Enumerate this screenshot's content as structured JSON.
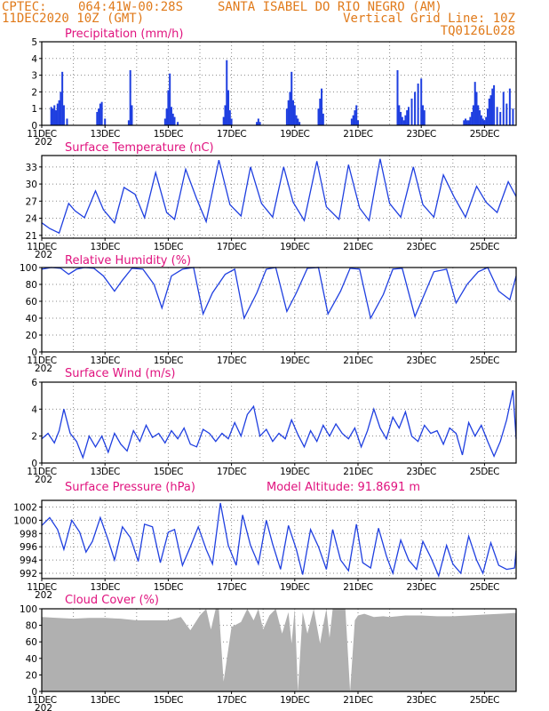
{
  "header": {
    "line1_left": "CPTEC:",
    "line1_coords": "064:41W-00:28S",
    "line1_place": "SANTA ISABEL DO RIO NEGRO (AM)",
    "line2_date": "11DEC2020 10Z (GMT)",
    "line2_grid": "Vertical Grid Line: 10Z",
    "line3_code": "TQ0126L028"
  },
  "colors": {
    "header": "#e07a1a",
    "title": "#e0127e",
    "series": "#1f3fe0",
    "bars": "#1f3fe0",
    "cloud": "#b0b0b0",
    "grid": "#888888"
  },
  "x_axis": {
    "start": "11DEC",
    "end": "26DEC",
    "tick_labels": [
      "11DEC",
      "13DEC",
      "15DEC",
      "17DEC",
      "19DEC",
      "21DEC",
      "23DEC",
      "25DEC"
    ],
    "tick_days": [
      11,
      13,
      15,
      17,
      19,
      21,
      23,
      25
    ],
    "grid_every_days": 1,
    "first_label_subscript": "202"
  },
  "chart_data": [
    {
      "id": "precip",
      "type": "bar",
      "title": "Precipitation (mm/h)",
      "ylim": [
        0,
        5
      ],
      "yticks": [
        0,
        1,
        2,
        3,
        4,
        5
      ],
      "x": [
        11.3,
        11.35,
        11.4,
        11.45,
        11.5,
        11.55,
        11.6,
        11.65,
        11.7,
        11.8,
        12.75,
        12.8,
        12.85,
        12.9,
        13.0,
        13.75,
        13.8,
        13.85,
        14.9,
        14.95,
        15.0,
        15.05,
        15.1,
        15.15,
        15.2,
        15.3,
        16.75,
        16.8,
        16.85,
        16.9,
        16.95,
        17.0,
        17.8,
        17.85,
        17.9,
        18.75,
        18.8,
        18.85,
        18.9,
        18.95,
        19.0,
        19.05,
        19.1,
        19.15,
        19.75,
        19.8,
        19.85,
        19.9,
        20.8,
        20.85,
        20.9,
        20.95,
        21.0,
        22.25,
        22.3,
        22.35,
        22.4,
        22.45,
        22.5,
        22.55,
        22.6,
        22.7,
        22.8,
        22.9,
        23.0,
        23.05,
        23.1,
        24.35,
        24.4,
        24.45,
        24.5,
        24.55,
        24.6,
        24.65,
        24.7,
        24.75,
        24.8,
        24.85,
        24.9,
        24.95,
        25.0,
        25.05,
        25.1,
        25.15,
        25.2,
        25.25,
        25.3,
        25.4,
        25.5,
        25.6,
        25.7,
        25.8,
        25.9
      ],
      "values": [
        1.1,
        1.0,
        1.2,
        0.9,
        1.3,
        1.5,
        2.0,
        3.2,
        1.2,
        0.4,
        0.8,
        1.0,
        1.3,
        1.4,
        0.4,
        0.3,
        3.3,
        1.2,
        0.4,
        1.0,
        2.1,
        3.1,
        1.1,
        0.7,
        0.5,
        0.2,
        0.5,
        1.2,
        3.9,
        2.1,
        0.9,
        0.4,
        0.2,
        0.4,
        0.2,
        1.0,
        1.5,
        2.0,
        3.2,
        1.5,
        1.2,
        0.6,
        0.4,
        0.2,
        1.0,
        1.6,
        2.2,
        0.7,
        0.4,
        0.6,
        0.9,
        1.2,
        0.3,
        3.3,
        1.2,
        0.8,
        0.5,
        0.3,
        0.6,
        0.9,
        1.1,
        1.6,
        2.0,
        2.5,
        2.8,
        1.2,
        0.9,
        0.3,
        0.4,
        0.3,
        0.3,
        0.5,
        0.8,
        1.2,
        2.6,
        2.0,
        1.2,
        0.9,
        0.6,
        0.4,
        0.3,
        0.5,
        1.0,
        1.6,
        1.8,
        2.2,
        2.4,
        1.1,
        0.8,
        2.0,
        1.3,
        2.2,
        1.0
      ]
    },
    {
      "id": "temp",
      "type": "line",
      "title": "Surface Temperature (nC)",
      "ylim": [
        20.5,
        35
      ],
      "yticks": [
        21,
        24,
        27,
        30,
        33
      ],
      "x": [
        11.0,
        11.25,
        11.55,
        11.85,
        12.05,
        12.35,
        12.7,
        12.95,
        13.3,
        13.6,
        13.95,
        14.25,
        14.6,
        14.95,
        15.2,
        15.55,
        15.9,
        16.2,
        16.6,
        16.95,
        17.3,
        17.6,
        17.95,
        18.3,
        18.65,
        18.95,
        19.3,
        19.7,
        20.0,
        20.4,
        20.7,
        21.05,
        21.35,
        21.7,
        22.0,
        22.35,
        22.75,
        23.05,
        23.4,
        23.7,
        24.05,
        24.4,
        24.75,
        25.05,
        25.4,
        25.75,
        26.0
      ],
      "values": [
        23.2,
        22.2,
        21.4,
        26.6,
        25.3,
        24.1,
        28.8,
        25.5,
        23.2,
        29.4,
        28.2,
        24.1,
        32.0,
        25.0,
        23.8,
        32.6,
        27.4,
        23.4,
        34.2,
        26.4,
        24.4,
        33.0,
        26.6,
        24.2,
        33.0,
        26.8,
        23.6,
        34.0,
        26.0,
        23.8,
        33.4,
        25.8,
        23.6,
        34.4,
        26.6,
        24.2,
        33.0,
        26.4,
        24.2,
        31.6,
        27.6,
        24.2,
        29.6,
        26.8,
        25.0,
        30.4,
        27.8
      ]
    },
    {
      "id": "rh",
      "type": "line",
      "title": "Relative Humidity (%)",
      "ylim": [
        0,
        100
      ],
      "yticks": [
        0,
        20,
        40,
        60,
        80,
        100
      ],
      "x": [
        11.0,
        11.3,
        11.6,
        11.85,
        12.1,
        12.35,
        12.65,
        12.95,
        13.3,
        13.55,
        13.85,
        14.2,
        14.55,
        14.8,
        15.1,
        15.45,
        15.8,
        16.1,
        16.4,
        16.8,
        17.1,
        17.4,
        17.8,
        18.1,
        18.4,
        18.75,
        19.05,
        19.4,
        19.75,
        20.05,
        20.45,
        20.75,
        21.05,
        21.4,
        21.8,
        22.1,
        22.4,
        22.8,
        23.05,
        23.4,
        23.8,
        24.1,
        24.45,
        24.8,
        25.1,
        25.45,
        25.8,
        26.0
      ],
      "values": [
        98,
        100,
        99,
        92,
        98,
        100,
        99,
        90,
        72,
        85,
        99,
        98,
        80,
        52,
        90,
        98,
        100,
        45,
        70,
        92,
        98,
        40,
        70,
        98,
        100,
        48,
        70,
        99,
        100,
        45,
        72,
        99,
        98,
        40,
        68,
        98,
        99,
        42,
        64,
        95,
        98,
        58,
        80,
        95,
        100,
        72,
        62,
        90
      ]
    },
    {
      "id": "wind",
      "type": "line",
      "title": "Surface Wind (m/s)",
      "ylim": [
        0,
        6
      ],
      "yticks": [
        0,
        2,
        4,
        6
      ],
      "x": [
        11.0,
        11.2,
        11.4,
        11.55,
        11.7,
        11.9,
        12.1,
        12.3,
        12.5,
        12.7,
        12.9,
        13.1,
        13.3,
        13.5,
        13.7,
        13.9,
        14.1,
        14.3,
        14.5,
        14.7,
        14.9,
        15.1,
        15.3,
        15.5,
        15.7,
        15.9,
        16.1,
        16.3,
        16.5,
        16.7,
        16.9,
        17.1,
        17.3,
        17.5,
        17.7,
        17.9,
        18.1,
        18.3,
        18.5,
        18.7,
        18.9,
        19.1,
        19.3,
        19.5,
        19.7,
        19.9,
        20.1,
        20.3,
        20.5,
        20.7,
        20.9,
        21.1,
        21.3,
        21.5,
        21.7,
        21.9,
        22.1,
        22.3,
        22.5,
        22.7,
        22.9,
        23.1,
        23.3,
        23.5,
        23.7,
        23.9,
        24.1,
        24.3,
        24.5,
        24.7,
        24.9,
        25.1,
        25.3,
        25.5,
        25.7,
        25.9,
        26.0
      ],
      "values": [
        1.8,
        2.2,
        1.5,
        2.4,
        4.0,
        2.2,
        1.6,
        0.4,
        2.0,
        1.2,
        2.0,
        0.8,
        2.2,
        1.4,
        0.9,
        2.4,
        1.6,
        2.8,
        1.9,
        2.2,
        1.5,
        2.4,
        1.8,
        2.6,
        1.4,
        1.2,
        2.5,
        2.2,
        1.6,
        2.2,
        1.8,
        3.0,
        2.0,
        3.6,
        4.2,
        2.0,
        2.5,
        1.6,
        2.2,
        1.8,
        3.2,
        2.1,
        1.2,
        2.4,
        1.6,
        2.8,
        2.0,
        2.9,
        2.2,
        1.8,
        2.6,
        1.2,
        2.4,
        4.0,
        2.6,
        1.8,
        3.4,
        2.6,
        3.8,
        2.0,
        1.6,
        2.8,
        2.2,
        2.4,
        1.4,
        2.6,
        2.2,
        0.6,
        3.0,
        2.0,
        2.8,
        1.6,
        0.5,
        1.6,
        3.2,
        5.4,
        1.8
      ]
    },
    {
      "id": "pres",
      "type": "line",
      "title": "Surface Pressure (hPa)",
      "annotation": "Model Altitude: 91.8691 m",
      "ylim": [
        991.2,
        1003
      ],
      "yticks": [
        992,
        994,
        996,
        998,
        1000,
        1002
      ],
      "x": [
        11.0,
        11.25,
        11.5,
        11.7,
        11.95,
        12.2,
        12.4,
        12.6,
        12.85,
        13.1,
        13.3,
        13.55,
        13.8,
        14.05,
        14.25,
        14.5,
        14.75,
        15.0,
        15.2,
        15.45,
        15.7,
        15.95,
        16.2,
        16.4,
        16.65,
        16.9,
        17.15,
        17.35,
        17.6,
        17.85,
        18.1,
        18.3,
        18.55,
        18.8,
        19.05,
        19.25,
        19.5,
        19.75,
        20.0,
        20.2,
        20.45,
        20.7,
        20.95,
        21.15,
        21.4,
        21.65,
        21.9,
        22.1,
        22.35,
        22.6,
        22.85,
        23.05,
        23.3,
        23.55,
        23.8,
        24.0,
        24.25,
        24.5,
        24.75,
        24.95,
        25.2,
        25.45,
        25.7,
        25.95,
        26.0
      ],
      "values": [
        999.2,
        1000.4,
        998.6,
        995.6,
        1000.0,
        998.2,
        995.2,
        996.8,
        1000.4,
        997.0,
        994.0,
        999.0,
        997.4,
        993.8,
        999.4,
        999.0,
        993.6,
        998.2,
        998.6,
        993.2,
        996.0,
        999.0,
        995.6,
        993.4,
        1002.6,
        996.2,
        993.2,
        1000.8,
        996.2,
        993.4,
        1000.0,
        996.4,
        992.6,
        999.2,
        995.6,
        991.8,
        998.6,
        996.0,
        992.6,
        998.6,
        994.0,
        992.4,
        999.4,
        993.6,
        992.8,
        998.8,
        994.6,
        992.0,
        997.0,
        994.0,
        992.6,
        996.8,
        994.4,
        991.6,
        996.2,
        993.4,
        992.0,
        997.6,
        994.0,
        992.0,
        996.6,
        993.2,
        992.6,
        992.8,
        995.4
      ]
    },
    {
      "id": "cloud",
      "type": "area",
      "title": "Cloud Cover (%)",
      "ylim": [
        0,
        100
      ],
      "yticks": [
        0,
        20,
        40,
        60,
        80,
        100
      ],
      "x": [
        11.0,
        11.5,
        12.0,
        12.5,
        13.0,
        13.5,
        14.0,
        14.5,
        15.0,
        15.4,
        15.7,
        16.0,
        16.2,
        16.35,
        16.5,
        16.6,
        16.75,
        17.0,
        17.3,
        17.5,
        17.7,
        17.85,
        18.0,
        18.2,
        18.4,
        18.6,
        18.8,
        18.9,
        19.0,
        19.1,
        19.25,
        19.4,
        19.6,
        19.8,
        19.9,
        20.0,
        20.1,
        20.2,
        20.4,
        20.6,
        20.75,
        20.9,
        21.0,
        21.2,
        21.5,
        21.8,
        22.0,
        22.5,
        23.0,
        23.5,
        24.0,
        24.5,
        25.0,
        25.5,
        26.0
      ],
      "values": [
        90,
        89,
        88,
        89,
        89,
        88,
        86,
        86,
        86,
        90,
        74,
        92,
        100,
        75,
        100,
        100,
        12,
        78,
        84,
        100,
        86,
        100,
        75,
        92,
        100,
        70,
        96,
        58,
        100,
        0,
        96,
        70,
        100,
        58,
        80,
        100,
        65,
        100,
        100,
        100,
        0,
        86,
        92,
        94,
        90,
        91,
        90,
        92,
        92,
        91,
        91,
        92,
        93,
        94,
        95
      ]
    }
  ]
}
